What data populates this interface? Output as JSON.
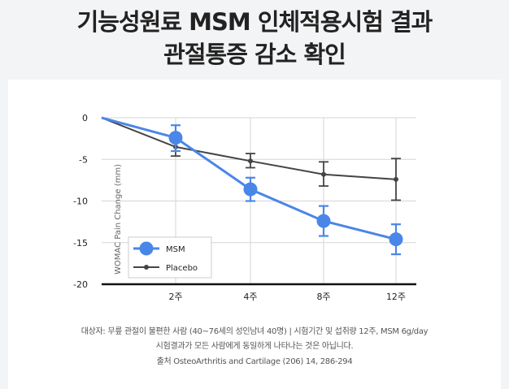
{
  "header": {
    "title_line1": "기능성원료 MSM 인체적용시험 결과",
    "title_line2": "관절통증 감소 확인"
  },
  "colors": {
    "msm": "#4a86e8",
    "placebo": "#444444",
    "grid": "#d5d5d5"
  },
  "chart_data": {
    "type": "line",
    "title": "",
    "xlabel": "",
    "ylabel": "WOMAC Pain Change (mm)",
    "categories": [
      "",
      "2주",
      "4주",
      "8주",
      "12주"
    ],
    "ylim": [
      -20,
      0
    ],
    "yticks": [
      "0",
      "-5",
      "-10",
      "-15",
      "-20"
    ],
    "grid": true,
    "legend_position": "bottom-left",
    "series": [
      {
        "name": "MSM",
        "values": [
          0,
          -2.4,
          -8.6,
          -12.4,
          -14.6
        ],
        "err_low": [
          0,
          -4.0,
          -10.0,
          -14.2,
          -16.4
        ],
        "err_high": [
          0,
          -0.9,
          -7.2,
          -10.6,
          -12.8
        ]
      },
      {
        "name": "Placebo",
        "values": [
          0,
          -3.5,
          -5.2,
          -6.8,
          -7.4
        ],
        "err_low": [
          0,
          -4.6,
          -6.0,
          -8.2,
          -9.9
        ],
        "err_high": [
          0,
          -2.4,
          -4.3,
          -5.3,
          -4.9
        ]
      }
    ]
  },
  "footnotes": {
    "line1": "대상자: 무릎 관절이 불편한 사람 (40~76세의 성인남녀 40명) | 시험기간 및 섭취량 12주, MSM 6g/day",
    "line2": "시험결과가 모든 사람에게 동일하게 나타나는 것은 아닙니다.",
    "line3": "출처 OsteoArthritis and Cartilage (206) 14, 286-294"
  }
}
